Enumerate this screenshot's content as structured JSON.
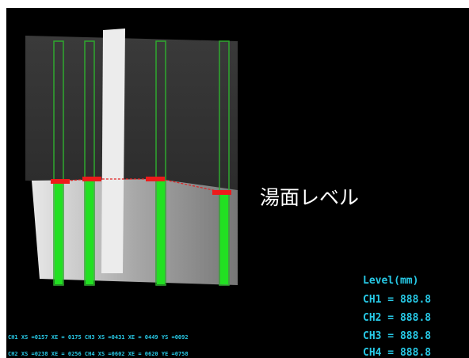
{
  "annotation": "湯面レベル",
  "level_panel": {
    "title": "Level(mm)",
    "rows": [
      "CH1 = 888.8",
      "CH2 = 888.8",
      "CH3 = 888.8",
      "CH4 = 888.8"
    ]
  },
  "status_lines": [
    "CH1 XS =0157 XE = 0175   CH3 XS =0431 XE = 0449   YS =0092",
    "CH2 XS =0238 XE = 0256   CH4 XS =0602 XE = 0620   YE =0758"
  ]
}
